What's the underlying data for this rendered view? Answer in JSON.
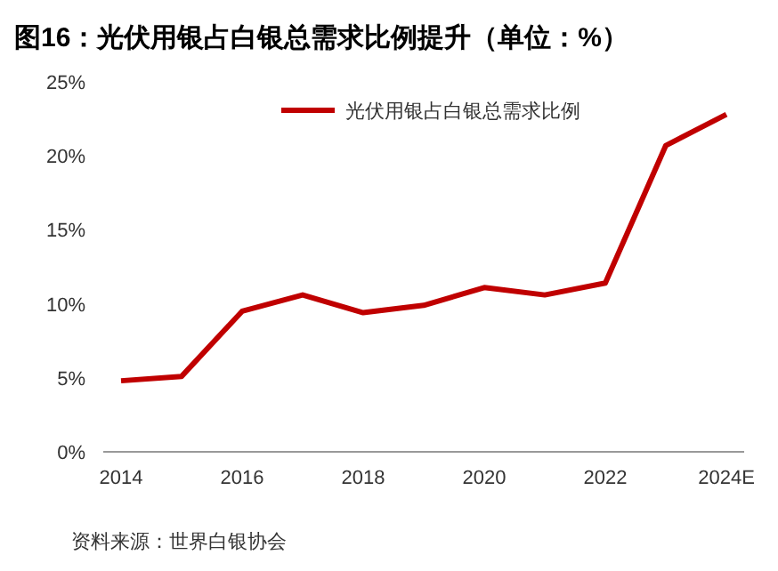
{
  "chart_data": {
    "type": "line",
    "title": "图16：光伏用银占白银总需求比例提升（单位：%）",
    "categories": [
      "2014",
      null,
      "2016",
      null,
      "2018",
      null,
      "2020",
      null,
      "2022",
      null,
      "2024E"
    ],
    "series": [
      {
        "name": "光伏用银占白银总需求比例",
        "color": "#c00000",
        "values": [
          4.8,
          5.1,
          9.5,
          10.6,
          9.4,
          9.9,
          11.1,
          10.6,
          11.4,
          20.7,
          22.8
        ]
      }
    ],
    "ylim": [
      0,
      25
    ],
    "yticks": [
      {
        "value": 0,
        "label": "0%"
      },
      {
        "value": 5,
        "label": "5%"
      },
      {
        "value": 10,
        "label": "10%"
      },
      {
        "value": 15,
        "label": "15%"
      },
      {
        "value": 20,
        "label": "20%"
      },
      {
        "value": 25,
        "label": "25%"
      }
    ],
    "legend": "top",
    "grid": false,
    "marker": "none",
    "line_style": "solid",
    "annotations": [
      "资料来源：世界白银协会"
    ]
  }
}
